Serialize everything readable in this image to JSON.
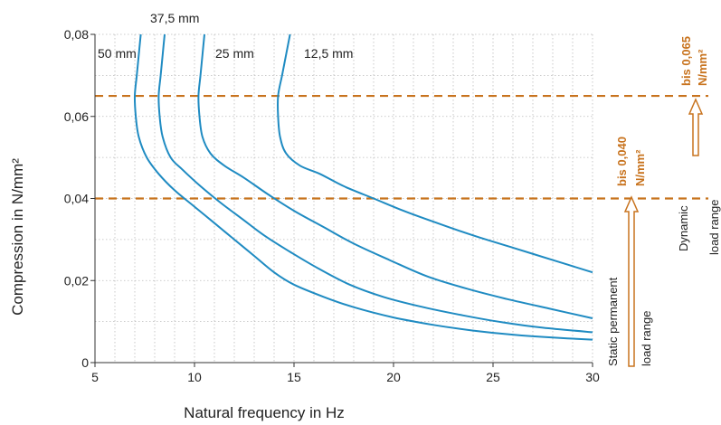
{
  "chart_data": {
    "type": "line",
    "xlabel": "Natural frequency in Hz",
    "ylabel": "Compression in N/mm²",
    "xlim": [
      5,
      30
    ],
    "ylim": [
      0,
      0.08
    ],
    "x_ticks": [
      "5",
      "10",
      "15",
      "20",
      "25",
      "30"
    ],
    "y_ticks": [
      "0",
      "0,02",
      "0,04",
      "0,06",
      "0,08"
    ],
    "grid": true,
    "colors": {
      "curve": "#1f8bc2",
      "threshold": "#c8731e",
      "axis": "#333333",
      "grid": "#bbbbbb"
    },
    "series": [
      {
        "name": "50 mm",
        "points": [
          [
            7.3,
            0.08
          ],
          [
            7.2,
            0.075
          ],
          [
            7.1,
            0.07
          ],
          [
            7.0,
            0.065
          ],
          [
            7.05,
            0.06
          ],
          [
            7.2,
            0.055
          ],
          [
            7.6,
            0.05
          ],
          [
            8.2,
            0.046
          ],
          [
            9.0,
            0.042
          ],
          [
            10.0,
            0.038
          ],
          [
            11.0,
            0.034
          ],
          [
            12.0,
            0.03
          ],
          [
            13.0,
            0.026
          ],
          [
            14.0,
            0.022
          ],
          [
            15.0,
            0.019
          ],
          [
            16.5,
            0.016
          ],
          [
            18.0,
            0.0135
          ],
          [
            20.0,
            0.011
          ],
          [
            22.0,
            0.0092
          ],
          [
            24.0,
            0.0078
          ],
          [
            26.0,
            0.0068
          ],
          [
            28.0,
            0.0061
          ],
          [
            30.0,
            0.0056
          ]
        ]
      },
      {
        "name": "37,5 mm",
        "points": [
          [
            8.5,
            0.08
          ],
          [
            8.4,
            0.075
          ],
          [
            8.3,
            0.07
          ],
          [
            8.2,
            0.065
          ],
          [
            8.25,
            0.06
          ],
          [
            8.4,
            0.055
          ],
          [
            8.8,
            0.05
          ],
          [
            9.4,
            0.047
          ],
          [
            10.3,
            0.043
          ],
          [
            11.3,
            0.039
          ],
          [
            12.4,
            0.035
          ],
          [
            13.5,
            0.031
          ],
          [
            14.8,
            0.027
          ],
          [
            16.2,
            0.023
          ],
          [
            17.8,
            0.019
          ],
          [
            19.5,
            0.016
          ],
          [
            21.5,
            0.0135
          ],
          [
            23.5,
            0.0115
          ],
          [
            25.5,
            0.0098
          ],
          [
            27.5,
            0.0085
          ],
          [
            30.0,
            0.0074
          ]
        ]
      },
      {
        "name": "25 mm",
        "points": [
          [
            10.5,
            0.08
          ],
          [
            10.4,
            0.075
          ],
          [
            10.3,
            0.07
          ],
          [
            10.2,
            0.065
          ],
          [
            10.25,
            0.06
          ],
          [
            10.4,
            0.055
          ],
          [
            10.8,
            0.051
          ],
          [
            11.5,
            0.048
          ],
          [
            12.5,
            0.045
          ],
          [
            13.7,
            0.041
          ],
          [
            15.0,
            0.037
          ],
          [
            16.5,
            0.033
          ],
          [
            18.0,
            0.029
          ],
          [
            19.8,
            0.025
          ],
          [
            21.7,
            0.021
          ],
          [
            23.7,
            0.018
          ],
          [
            25.7,
            0.0155
          ],
          [
            27.8,
            0.0132
          ],
          [
            30.0,
            0.0108
          ]
        ]
      },
      {
        "name": "12,5 mm",
        "points": [
          [
            14.8,
            0.08
          ],
          [
            14.6,
            0.075
          ],
          [
            14.4,
            0.07
          ],
          [
            14.2,
            0.065
          ],
          [
            14.2,
            0.06
          ],
          [
            14.3,
            0.055
          ],
          [
            14.6,
            0.051
          ],
          [
            15.3,
            0.048
          ],
          [
            16.3,
            0.046
          ],
          [
            17.5,
            0.043
          ],
          [
            19.0,
            0.04
          ],
          [
            20.5,
            0.037
          ],
          [
            22.2,
            0.034
          ],
          [
            24.0,
            0.031
          ],
          [
            26.0,
            0.028
          ],
          [
            28.0,
            0.025
          ],
          [
            30.0,
            0.022
          ]
        ]
      }
    ],
    "thresholds": [
      {
        "y": 0.065,
        "label_line1": "bis 0,065",
        "label_line2": "N/mm²",
        "range_line1": "Dynamic",
        "range_line2": "load range"
      },
      {
        "y": 0.04,
        "label_line1": "bis 0,040",
        "label_line2": "N/mm²",
        "range_line1": "Static permanent",
        "range_line2": "load range"
      }
    ]
  }
}
